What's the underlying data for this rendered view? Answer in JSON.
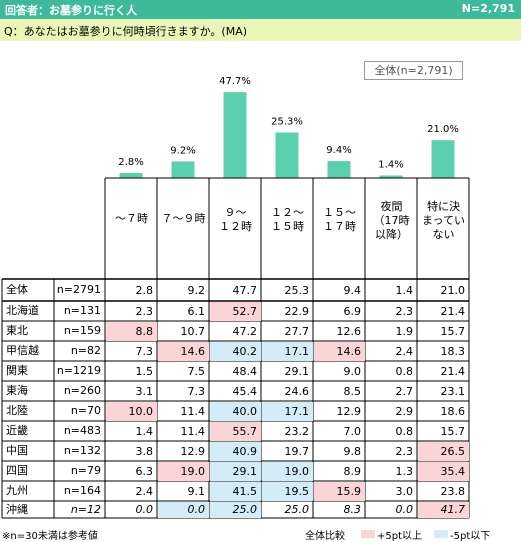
{
  "header": {
    "title": "回答者：お墓参りに行く人",
    "n": "N=2,791"
  },
  "question": "Q：あなたはお墓参りに何時頃行きますか。(MA)",
  "legend_box": "全体(n=2,791)",
  "columns": [
    "～７時",
    "７～９時",
    "９～\n１２時",
    "１２～\n１５時",
    "１５～\n１７時",
    "夜間\n（17時\n以降）",
    "特に決\nまってい\nない"
  ],
  "chart_data": {
    "type": "bar",
    "categories": [
      "～７時",
      "７～９時",
      "９～１２時",
      "１２～１５時",
      "１５～１７時",
      "夜間（17時以降）",
      "特に決まっていない"
    ],
    "values": [
      2.8,
      9.2,
      47.7,
      25.3,
      9.4,
      1.4,
      21.0
    ],
    "value_labels": [
      "2.8%",
      "9.2%",
      "47.7%",
      "25.3%",
      "9.4%",
      "1.4%",
      "21.0%"
    ],
    "ylim": [
      0,
      50
    ],
    "bar_color": "#5ccfae"
  },
  "rows": [
    {
      "region": "全体",
      "n": "n=2791",
      "values": [
        "2.8",
        "9.2",
        "47.7",
        "25.3",
        "9.4",
        "1.4",
        "21.0"
      ],
      "hl": [
        "",
        "",
        "",
        "",
        "",
        "",
        ""
      ]
    },
    {
      "region": "北海道",
      "n": "n=131",
      "values": [
        "2.3",
        "6.1",
        "52.7",
        "22.9",
        "6.9",
        "2.3",
        "21.4"
      ],
      "hl": [
        "",
        "",
        "high",
        "",
        "",
        "",
        ""
      ]
    },
    {
      "region": "東北",
      "n": "n=159",
      "values": [
        "8.8",
        "10.7",
        "47.2",
        "27.7",
        "12.6",
        "1.9",
        "15.7"
      ],
      "hl": [
        "high",
        "",
        "",
        "",
        "",
        "",
        ""
      ]
    },
    {
      "region": "甲信越",
      "n": "n=82",
      "values": [
        "7.3",
        "14.6",
        "40.2",
        "17.1",
        "14.6",
        "2.4",
        "18.3"
      ],
      "hl": [
        "",
        "high",
        "low",
        "low",
        "high",
        "",
        ""
      ]
    },
    {
      "region": "関東",
      "n": "n=1219",
      "values": [
        "1.5",
        "7.5",
        "48.4",
        "29.1",
        "9.0",
        "0.8",
        "21.4"
      ],
      "hl": [
        "",
        "",
        "",
        "",
        "",
        "",
        ""
      ]
    },
    {
      "region": "東海",
      "n": "n=260",
      "values": [
        "3.1",
        "7.3",
        "45.4",
        "24.6",
        "8.5",
        "2.7",
        "23.1"
      ],
      "hl": [
        "",
        "",
        "",
        "",
        "",
        "",
        ""
      ]
    },
    {
      "region": "北陸",
      "n": "n=70",
      "values": [
        "10.0",
        "11.4",
        "40.0",
        "17.1",
        "12.9",
        "2.9",
        "18.6"
      ],
      "hl": [
        "high",
        "",
        "low",
        "low",
        "",
        "",
        ""
      ]
    },
    {
      "region": "近畿",
      "n": "n=483",
      "values": [
        "1.4",
        "11.4",
        "55.7",
        "23.2",
        "7.0",
        "0.8",
        "15.7"
      ],
      "hl": [
        "",
        "",
        "high",
        "",
        "",
        "",
        ""
      ]
    },
    {
      "region": "中国",
      "n": "n=132",
      "values": [
        "3.8",
        "12.9",
        "40.9",
        "19.7",
        "9.8",
        "2.3",
        "26.5"
      ],
      "hl": [
        "",
        "",
        "low",
        "",
        "",
        "",
        "high"
      ]
    },
    {
      "region": "四国",
      "n": "n=79",
      "values": [
        "6.3",
        "19.0",
        "29.1",
        "19.0",
        "8.9",
        "1.3",
        "35.4"
      ],
      "hl": [
        "",
        "high",
        "low",
        "low",
        "",
        "",
        "high"
      ]
    },
    {
      "region": "九州",
      "n": "n=164",
      "values": [
        "2.4",
        "9.1",
        "41.5",
        "19.5",
        "15.9",
        "3.0",
        "23.8"
      ],
      "hl": [
        "",
        "",
        "low",
        "low",
        "high",
        "",
        ""
      ]
    },
    {
      "region": "沖縄",
      "n": "n=12",
      "values": [
        "0.0",
        "0.0",
        "25.0",
        "25.0",
        "8.3",
        "0.0",
        "41.7"
      ],
      "hl": [
        "",
        "low",
        "low",
        "",
        "",
        "",
        "high"
      ],
      "italic": true
    }
  ],
  "footer": {
    "note": "※n=30未満は参考値",
    "compare": "全体比較",
    "high_label": "+5pt以上",
    "low_label": "-5pt以下",
    "high_color": "#fbd5d5",
    "low_color": "#d3ecf8"
  }
}
